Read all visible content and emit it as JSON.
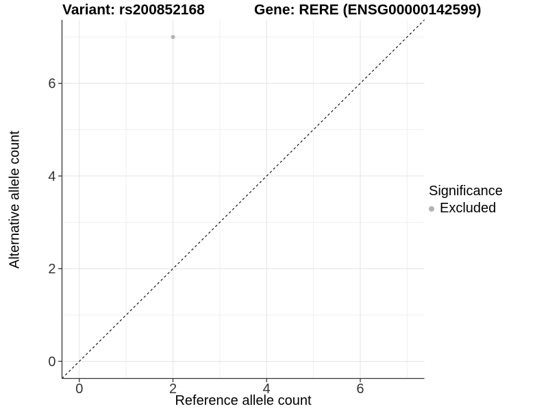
{
  "header": {
    "title_left": "Variant: rs200852168",
    "title_right": "Gene: RERE (ENSG00000142599)"
  },
  "legend": {
    "title": "Significance",
    "entries": [
      {
        "label": "Excluded",
        "color": "#b3b3b3"
      }
    ]
  },
  "chart_data": {
    "type": "scatter",
    "title_left": "Variant: rs200852168",
    "title_right": "Gene: RERE (ENSG00000142599)",
    "xlabel": "Reference allele count",
    "ylabel": "Alternative allele count",
    "xlim": [
      -0.37,
      7.37
    ],
    "ylim": [
      -0.37,
      7.37
    ],
    "x_ticks": [
      0,
      2,
      4,
      6
    ],
    "y_ticks": [
      0,
      2,
      4,
      6
    ],
    "x_minor": [
      1,
      3,
      5,
      7
    ],
    "y_minor": [
      1,
      3,
      5,
      7
    ],
    "grid": true,
    "legend_position": "right",
    "series": [
      {
        "name": "Excluded",
        "points": [
          {
            "x": 2,
            "y": 7
          }
        ]
      }
    ],
    "identity_line": {
      "style": "dashed",
      "from": [
        -0.37,
        -0.37
      ],
      "to": [
        7.37,
        7.37
      ]
    },
    "point_radius": 3,
    "colors": {
      "point": "#b3b3b3",
      "grid_major": "#e3e3e3",
      "grid_minor": "#efefef",
      "axis": "#333333",
      "tick_text": "#333333",
      "identity": "#000000"
    }
  }
}
